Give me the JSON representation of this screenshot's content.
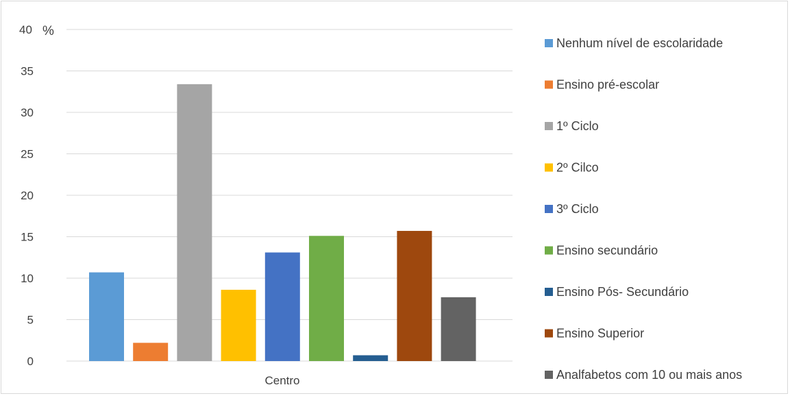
{
  "chart_data": {
    "type": "bar",
    "categories": [
      "Centro"
    ],
    "ylim": [
      0,
      40
    ],
    "yticks": [
      0,
      5,
      10,
      15,
      20,
      25,
      30,
      35,
      40
    ],
    "y_unit": "%",
    "grid": true,
    "legend_position": "right",
    "series": [
      {
        "name": "Nenhum nível de escolaridade",
        "values": [
          10.7
        ],
        "color": "#5b9bd5"
      },
      {
        "name": "Ensino pré-escolar",
        "values": [
          2.2
        ],
        "color": "#ed7d31"
      },
      {
        "name": "1º Ciclo",
        "values": [
          33.4
        ],
        "color": "#a5a5a5"
      },
      {
        "name": "2º Cilco",
        "values": [
          8.6
        ],
        "color": "#ffc000"
      },
      {
        "name": "3º Ciclo",
        "values": [
          13.1
        ],
        "color": "#4472c4"
      },
      {
        "name": "Ensino secundário",
        "values": [
          15.1
        ],
        "color": "#70ad47"
      },
      {
        "name": "Ensino Pós- Secundário",
        "values": [
          0.7
        ],
        "color": "#255e91"
      },
      {
        "name": "Ensino Superior",
        "values": [
          15.7
        ],
        "color": "#9e480e"
      },
      {
        "name": "Analfabetos com 10 ou mais anos",
        "values": [
          7.7
        ],
        "color": "#636363"
      }
    ]
  }
}
